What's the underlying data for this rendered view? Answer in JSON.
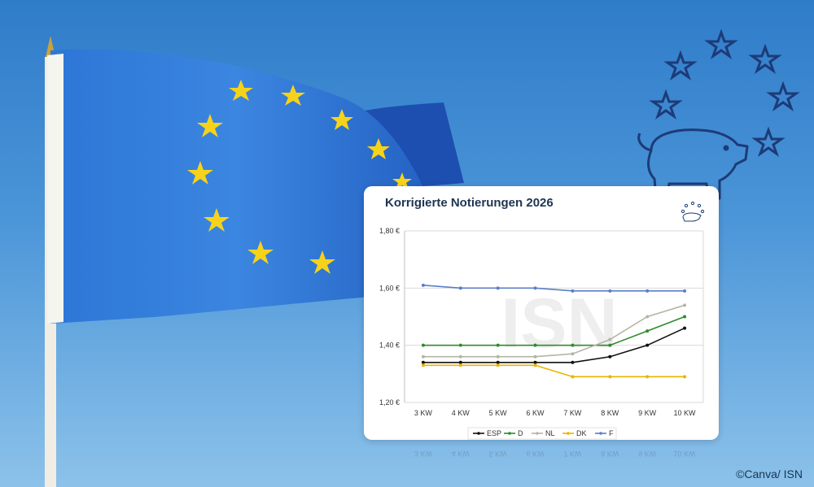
{
  "credit": "©Canva/ ISN",
  "colors": {
    "sky": "#3b86d0",
    "flag_blue": "#2a6fd0",
    "flag_star": "#f7d21a",
    "icon_navy": "#1d3b78"
  },
  "icons": [
    "eu-flag",
    "pig-with-star-circle-icon"
  ],
  "chart_data": {
    "type": "line",
    "title": "Korrigierte Notierungen 2026",
    "categories": [
      "3 KW",
      "4 KW",
      "5 KW",
      "6 KW",
      "7 KW",
      "8 KW",
      "9 KW",
      "10 KW"
    ],
    "y_ticks": [
      "1,20 €",
      "1,40 €",
      "1,60 €",
      "1,80 €"
    ],
    "ylim": [
      1.2,
      1.8
    ],
    "grid": true,
    "legend_position": "bottom",
    "watermark": "ISN",
    "series": [
      {
        "name": "ESP",
        "color": "#111111",
        "values": [
          1.34,
          1.34,
          1.34,
          1.34,
          1.34,
          1.36,
          1.4,
          1.46
        ]
      },
      {
        "name": "D",
        "color": "#2e8b2e",
        "values": [
          1.4,
          1.4,
          1.4,
          1.4,
          1.4,
          1.4,
          1.45,
          1.5
        ]
      },
      {
        "name": "NL",
        "color": "#b5b5a5",
        "values": [
          1.36,
          1.36,
          1.36,
          1.36,
          1.37,
          1.42,
          1.5,
          1.54
        ]
      },
      {
        "name": "DK",
        "color": "#e8b400",
        "values": [
          1.33,
          1.33,
          1.33,
          1.33,
          1.29,
          1.29,
          1.29,
          1.29
        ]
      },
      {
        "name": "F",
        "color": "#5b7fc7",
        "values": [
          1.61,
          1.6,
          1.6,
          1.6,
          1.59,
          1.59,
          1.59,
          1.59
        ]
      }
    ]
  }
}
